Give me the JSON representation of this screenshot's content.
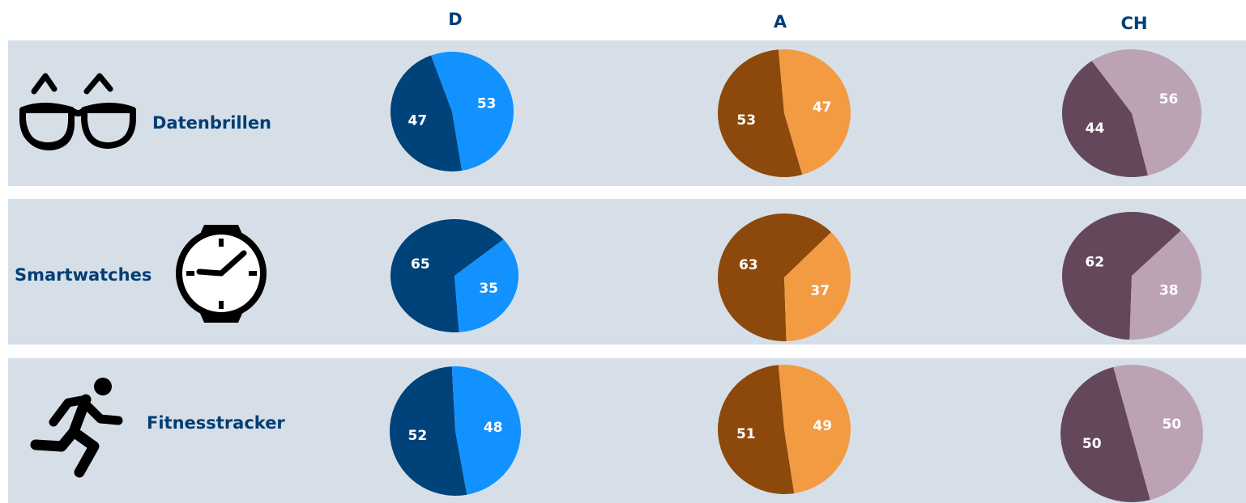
{
  "columns": [
    "D",
    "A",
    "CH"
  ],
  "rows": [
    {
      "label": "Datenbrillen",
      "icon": "glasses-icon"
    },
    {
      "label": "Smartwatches",
      "icon": "watch-icon"
    },
    {
      "label": "Fitnesstracker",
      "icon": "runner-icon"
    }
  ],
  "colors": {
    "band": "#d6dfe8",
    "heading": "#003e74",
    "D": [
      "#00427a",
      "#1192ff"
    ],
    "A": [
      "#8c490b",
      "#f39b43"
    ],
    "CH": [
      "#65475c",
      "#bca2b5"
    ]
  },
  "chart_data": {
    "type": "pie",
    "grid": [
      [
        {
          "country": "D",
          "values": [
            47,
            53
          ]
        },
        {
          "country": "A",
          "values": [
            53,
            47
          ]
        },
        {
          "country": "CH",
          "values": [
            44,
            56
          ]
        }
      ],
      [
        {
          "country": "D",
          "values": [
            65,
            35
          ]
        },
        {
          "country": "A",
          "values": [
            63,
            37
          ]
        },
        {
          "country": "CH",
          "values": [
            62,
            38
          ]
        }
      ],
      [
        {
          "country": "D",
          "values": [
            52,
            48
          ]
        },
        {
          "country": "A",
          "values": [
            51,
            49
          ]
        },
        {
          "country": "CH",
          "values": [
            50,
            50
          ]
        }
      ]
    ]
  }
}
